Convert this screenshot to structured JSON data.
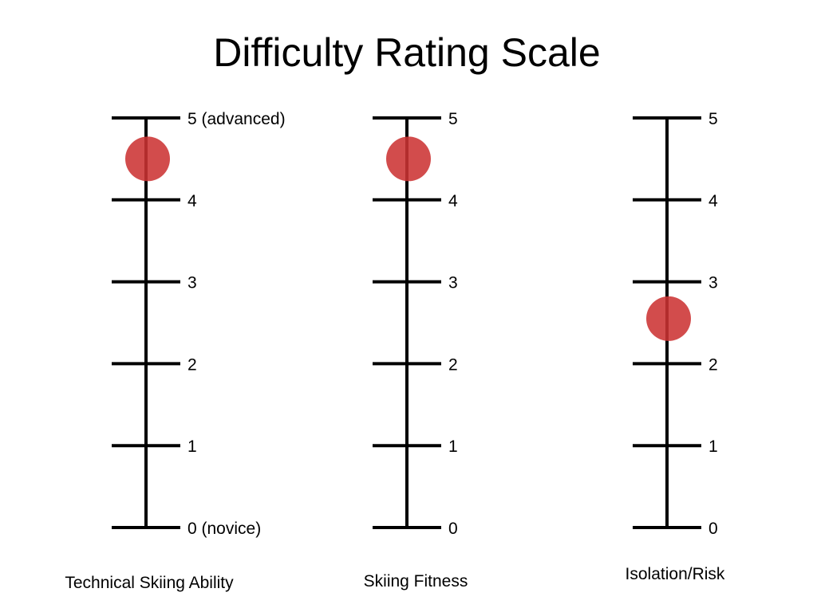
{
  "slide": {
    "title": "Difficulty Rating Scale"
  },
  "colors": {
    "axis": "#000000",
    "marker": "#cc3333"
  },
  "chart_data": {
    "type": "scatter",
    "title": "Difficulty Rating Scale",
    "ylim": [
      0,
      5
    ],
    "grid": false,
    "axes": [
      {
        "name": "Technical Skiing Ability",
        "tick_labels": [
          "0 (novice)",
          "1",
          "2",
          "3",
          "4",
          "5 (advanced)"
        ],
        "value": 4.5
      },
      {
        "name": "Skiing Fitness",
        "tick_labels": [
          "0",
          "1",
          "2",
          "3",
          "4",
          "5"
        ],
        "value": 4.5
      },
      {
        "name": "Isolation/Risk",
        "tick_labels": [
          "0",
          "1",
          "2",
          "3",
          "4",
          "5"
        ],
        "value": 2.55
      }
    ]
  }
}
